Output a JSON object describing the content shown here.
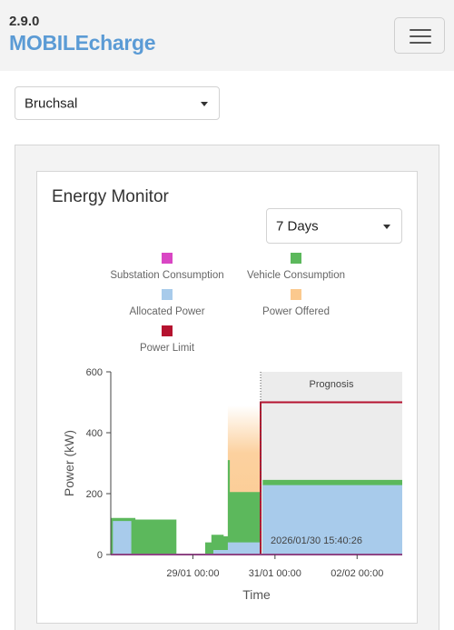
{
  "app": {
    "version": "2.9.0",
    "brand": "MOBILEcharge"
  },
  "nav": {
    "menu_icon": "hamburger-menu-icon"
  },
  "location_select": {
    "value": "Bruchsal"
  },
  "card": {
    "title": "Energy Monitor"
  },
  "period_select": {
    "value": "7 Days"
  },
  "legend": [
    {
      "label": "Substation Consumption",
      "color": "#d946c4"
    },
    {
      "label": "Vehicle Consumption",
      "color": "#5cb85c"
    },
    {
      "label": "Allocated Power",
      "color": "#a8cbeb"
    },
    {
      "label": "Power Offered",
      "color": "#fbc98e"
    },
    {
      "label": "Power Limit",
      "color": "#b5122f"
    }
  ],
  "chart_data": {
    "type": "area",
    "xlabel": "Time",
    "ylabel": "Power (kW)",
    "ylim": [
      0,
      600
    ],
    "yticks": [
      0,
      200,
      400,
      600
    ],
    "xticks": [
      "29/01 00:00",
      "31/01 00:00",
      "02/02 00:00"
    ],
    "prognosis_label": "Prognosis",
    "now_label": "2026/01/30 15:40:26",
    "x_unit": "days since 27/01 00:00",
    "x_range": [
      27.0,
      34.1
    ],
    "now_x": 30.65,
    "series": [
      {
        "name": "Vehicle Consumption",
        "color": "#5cb85c",
        "points": [
          [
            27.0,
            0
          ],
          [
            27.0,
            120
          ],
          [
            27.6,
            120
          ],
          [
            27.6,
            115
          ],
          [
            28.6,
            115
          ],
          [
            28.6,
            0
          ],
          [
            29.3,
            0
          ],
          [
            29.3,
            40
          ],
          [
            29.45,
            40
          ],
          [
            29.45,
            65
          ],
          [
            29.75,
            65
          ],
          [
            29.75,
            60
          ],
          [
            29.85,
            60
          ],
          [
            29.85,
            310
          ],
          [
            29.9,
            310
          ],
          [
            29.9,
            205
          ],
          [
            30.65,
            205
          ],
          [
            30.65,
            0
          ],
          [
            30.7,
            0
          ],
          [
            30.7,
            245
          ],
          [
            34.1,
            245
          ],
          [
            34.1,
            0
          ]
        ]
      },
      {
        "name": "Allocated Power",
        "color": "#a8cbeb",
        "points": [
          [
            27.05,
            0
          ],
          [
            27.05,
            110
          ],
          [
            27.5,
            110
          ],
          [
            27.5,
            0
          ],
          [
            29.5,
            0
          ],
          [
            29.5,
            15
          ],
          [
            29.85,
            15
          ],
          [
            29.85,
            40
          ],
          [
            30.65,
            40
          ],
          [
            30.65,
            0
          ],
          [
            30.7,
            0
          ],
          [
            30.7,
            228
          ],
          [
            34.1,
            228
          ],
          [
            34.1,
            0
          ]
        ]
      },
      {
        "name": "Power Offered",
        "color": "#fbc98e",
        "points": [
          [
            29.85,
            0
          ],
          [
            29.85,
            490
          ],
          [
            30.65,
            490
          ],
          [
            30.65,
            0
          ]
        ]
      },
      {
        "name": "Power Limit",
        "color": "#b5122f",
        "points": [
          [
            30.65,
            0
          ],
          [
            30.65,
            500
          ],
          [
            34.1,
            500
          ]
        ]
      },
      {
        "name": "Substation Consumption",
        "color": "#d946c4",
        "points": [
          [
            27.0,
            0
          ],
          [
            34.1,
            0
          ]
        ]
      }
    ]
  }
}
